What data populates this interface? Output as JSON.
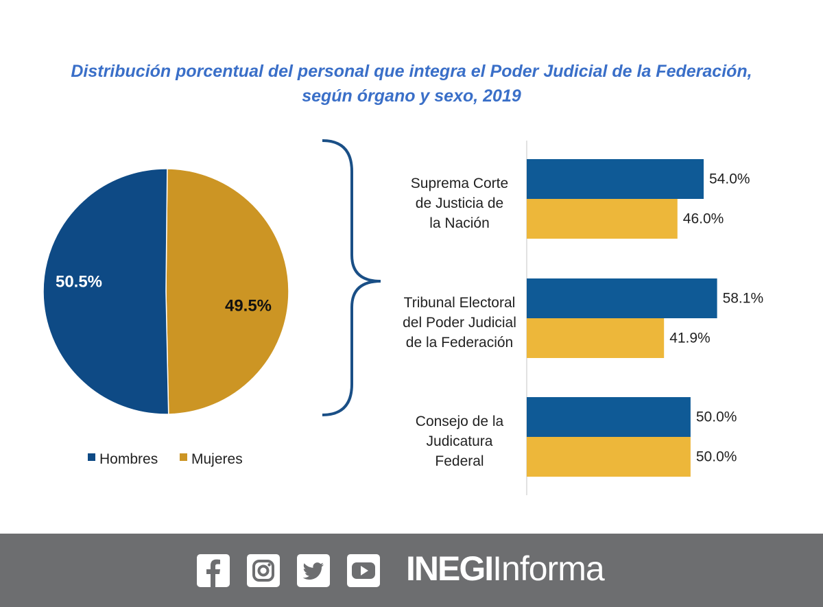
{
  "title": {
    "line1": "Distribución porcentual del personal que integra el Poder Judicial de la Federación,",
    "line2": "según órgano y sexo, 2019"
  },
  "colors": {
    "hombres": "#0f5a96",
    "mujeres": "#edb73a",
    "mujeres_pie": "#cc9524",
    "hombres_pie": "#0e4a85",
    "title": "#3a6fc8",
    "footer": "#6d6e70",
    "brace": "#1a4f86"
  },
  "chart_data": [
    {
      "type": "pie",
      "labels": [
        "Hombres",
        "Mujeres"
      ],
      "values": [
        50.5,
        49.5
      ],
      "data_labels": [
        "50.5%",
        "49.5%"
      ],
      "legend_position": "bottom"
    },
    {
      "type": "bar",
      "orientation": "horizontal",
      "categories": [
        [
          "Suprema Corte",
          "de Justicia de",
          "la Nación"
        ],
        [
          "Tribunal Electoral",
          "del Poder Judicial",
          "de la Federación"
        ],
        [
          "Consejo de la",
          "Judicatura",
          "Federal"
        ]
      ],
      "series": [
        {
          "name": "Hombres",
          "values": [
            54.0,
            58.1,
            50.0
          ],
          "labels": [
            "54.0%",
            "58.1%",
            "50.0%"
          ]
        },
        {
          "name": "Mujeres",
          "values": [
            46.0,
            41.9,
            50.0
          ],
          "labels": [
            "46.0%",
            "41.9%",
            "50.0%"
          ]
        }
      ],
      "xlim": [
        0,
        100
      ],
      "grid": false
    }
  ],
  "footer": {
    "social_icons": [
      "facebook-icon",
      "instagram-icon",
      "twitter-icon",
      "youtube-icon"
    ],
    "brand_bold": "INEGI",
    "brand_light": "Informa"
  }
}
